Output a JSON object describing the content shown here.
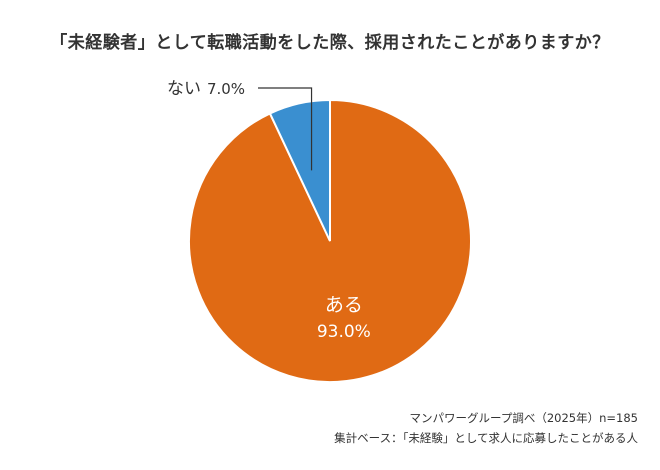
{
  "chart_data": {
    "type": "pie",
    "title": "「未経験者」として転職活動をした際、採用されたことがありますか？",
    "categories": [
      "ある",
      "ない"
    ],
    "values": [
      93.0,
      7.0
    ],
    "value_labels": [
      "93.0%",
      "7.0%"
    ],
    "colors": [
      "#e06a14",
      "#3a8fd0"
    ],
    "legend": "none"
  },
  "footnotes": {
    "source": "マンパワーグループ調べ（2025年）n=185",
    "population": "集計ベース：「未経験」として求人に応募したことがある人"
  }
}
